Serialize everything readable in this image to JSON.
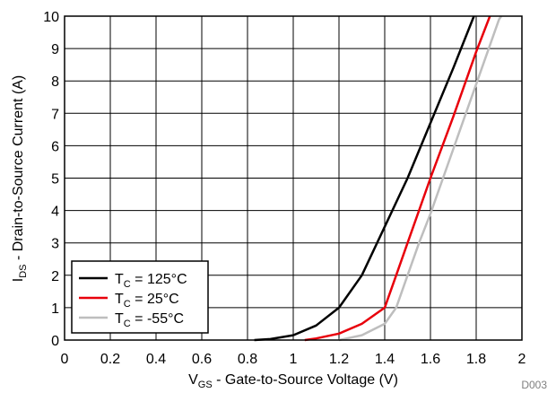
{
  "chart_data": {
    "type": "line",
    "xlabel": {
      "main": "V",
      "sub": "GS",
      "rest": " - Gate-to-Source Voltage (V)"
    },
    "ylabel": {
      "main": "I",
      "sub": "DS",
      "rest": " - Drain-to-Source Current (A)"
    },
    "xlim": [
      0,
      2
    ],
    "ylim": [
      0,
      10
    ],
    "x_ticks": [
      "0",
      "0.2",
      "0.4",
      "0.6",
      "0.8",
      "1",
      "1.2",
      "1.4",
      "1.6",
      "1.8",
      "2"
    ],
    "y_ticks": [
      "0",
      "1",
      "2",
      "3",
      "4",
      "5",
      "6",
      "7",
      "8",
      "9",
      "10"
    ],
    "grid": true,
    "legend_position": "bottom-left",
    "note": "D003",
    "series": [
      {
        "name": {
          "main": "T",
          "sub": "C",
          "rest": " = 125°C"
        },
        "color": "#000000",
        "points": [
          [
            0.83,
            0.0
          ],
          [
            0.9,
            0.03
          ],
          [
            1.0,
            0.15
          ],
          [
            1.1,
            0.45
          ],
          [
            1.2,
            1.0
          ],
          [
            1.3,
            2.0
          ],
          [
            1.4,
            3.5
          ],
          [
            1.5,
            5.0
          ],
          [
            1.6,
            6.7
          ],
          [
            1.7,
            8.4
          ],
          [
            1.79,
            10.0
          ]
        ]
      },
      {
        "name": {
          "main": "T",
          "sub": "C",
          "rest": " = 25°C"
        },
        "color": "#e8000b",
        "points": [
          [
            1.05,
            0.0
          ],
          [
            1.1,
            0.05
          ],
          [
            1.2,
            0.2
          ],
          [
            1.3,
            0.5
          ],
          [
            1.4,
            1.0
          ],
          [
            1.45,
            2.0
          ],
          [
            1.5,
            3.0
          ],
          [
            1.6,
            5.0
          ],
          [
            1.7,
            6.9
          ],
          [
            1.8,
            8.9
          ],
          [
            1.86,
            10.0
          ]
        ]
      },
      {
        "name": {
          "main": "T",
          "sub": "C",
          "rest": " = -55°C"
        },
        "color": "#bebebe",
        "points": [
          [
            1.2,
            0.0
          ],
          [
            1.3,
            0.15
          ],
          [
            1.4,
            0.5
          ],
          [
            1.45,
            1.0
          ],
          [
            1.5,
            2.0
          ],
          [
            1.55,
            3.0
          ],
          [
            1.6,
            3.9
          ],
          [
            1.7,
            5.9
          ],
          [
            1.8,
            7.9
          ],
          [
            1.9,
            9.9
          ],
          [
            1.91,
            10.0
          ]
        ]
      }
    ]
  }
}
